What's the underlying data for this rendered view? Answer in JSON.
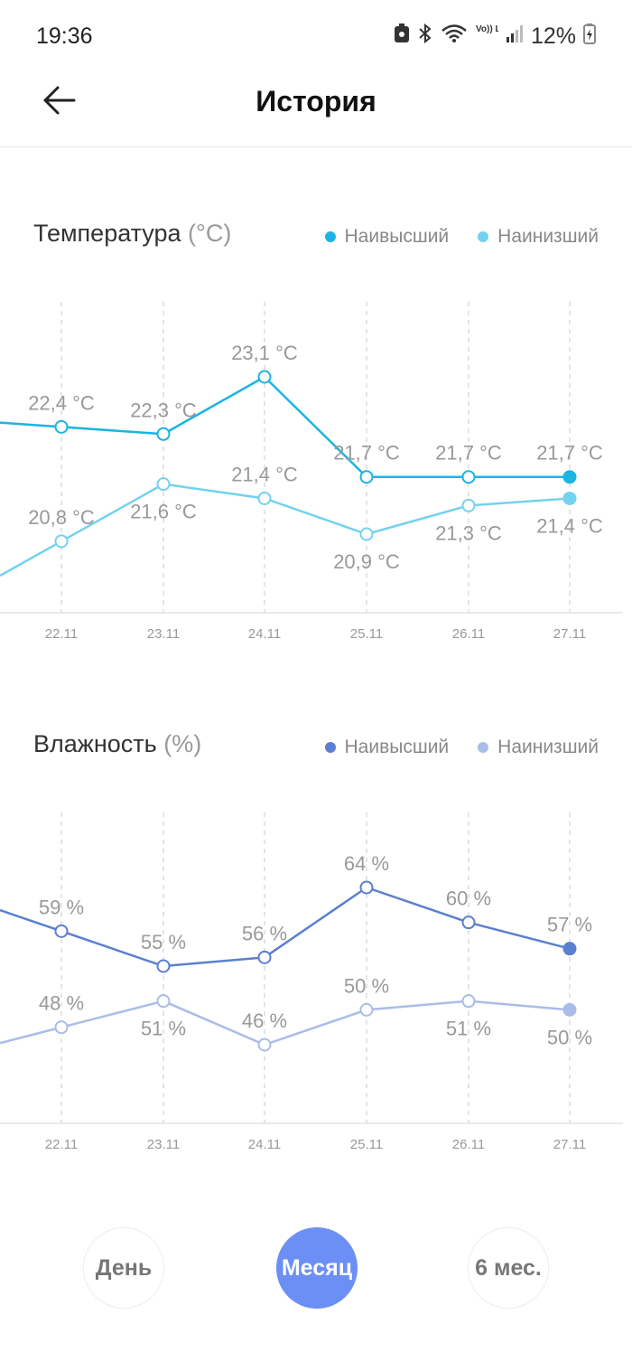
{
  "status_bar": {
    "time": "19:36",
    "battery_percent": "12%",
    "icons": [
      "nfc-icon",
      "bluetooth-icon",
      "wifi-icon",
      "volte-icon",
      "signal-icon",
      "battery-icon"
    ],
    "volte_label": "Vo)) LTE1"
  },
  "header": {
    "title": "История",
    "back_icon": "arrow-left-icon"
  },
  "temperature": {
    "title": "Температура",
    "unit": "(°C)",
    "legend": [
      {
        "label": "Наивысший",
        "color": "#1cb4e3"
      },
      {
        "label": "Наинизший",
        "color": "#74d2ee"
      }
    ]
  },
  "humidity": {
    "title": "Влажность",
    "unit": "(%)",
    "legend": [
      {
        "label": "Наивысший",
        "color": "#5b7fd0"
      },
      {
        "label": "Наинизший",
        "color": "#a9bde8"
      }
    ]
  },
  "chart_data": [
    {
      "type": "line",
      "title": "Температура",
      "unit": "°C",
      "categories": [
        "22.11",
        "23.11",
        "24.11",
        "25.11",
        "26.11",
        "27.11"
      ],
      "series": [
        {
          "name": "Наивысший",
          "color": "#1cb4e3",
          "values": [
            22.4,
            22.3,
            23.1,
            21.7,
            21.7,
            21.7
          ],
          "labels": [
            "22,4 °C",
            "22,3 °C",
            "23,1 °C",
            "21,7 °C",
            "21,7 °C",
            "21,7 °C"
          ]
        },
        {
          "name": "Наинизший",
          "color": "#74d2ee",
          "values": [
            20.8,
            21.6,
            21.4,
            20.9,
            21.3,
            21.4
          ],
          "labels": [
            "20,8 °C",
            "21,6 °C",
            "21,4 °C",
            "20,9 °C",
            "21,3 °C",
            "21,4 °C"
          ]
        }
      ],
      "ylim": [
        19.8,
        24.2
      ],
      "label_placement": [
        [
          "above",
          "above",
          "above",
          "above",
          "above",
          "above"
        ],
        [
          "above",
          "below",
          "above",
          "below",
          "below",
          "below"
        ]
      ],
      "grid": "vertical-dashed",
      "legend_position": "top-right"
    },
    {
      "type": "line",
      "title": "Влажность",
      "unit": "%",
      "categories": [
        "22.11",
        "23.11",
        "24.11",
        "25.11",
        "26.11",
        "27.11"
      ],
      "series": [
        {
          "name": "Наивысший",
          "color": "#5b7fd0",
          "values": [
            59,
            55,
            56,
            64,
            60,
            57
          ],
          "labels": [
            "59 %",
            "55 %",
            "56 %",
            "64 %",
            "60 %",
            "57 %"
          ]
        },
        {
          "name": "Наинизший",
          "color": "#a9bde8",
          "values": [
            48,
            51,
            46,
            50,
            51,
            50
          ],
          "labels": [
            "48 %",
            "51 %",
            "46 %",
            "50 %",
            "51 %",
            "50 %"
          ]
        }
      ],
      "ylim": [
        37,
        73
      ],
      "label_placement": [
        [
          "above",
          "above",
          "above",
          "above",
          "above",
          "above"
        ],
        [
          "above",
          "below",
          "above",
          "above",
          "below",
          "below"
        ]
      ],
      "grid": "vertical-dashed",
      "legend_position": "top-right"
    }
  ],
  "range_tabs": {
    "items": [
      "День",
      "Месяц",
      "6 мес."
    ],
    "active": "Месяц"
  }
}
